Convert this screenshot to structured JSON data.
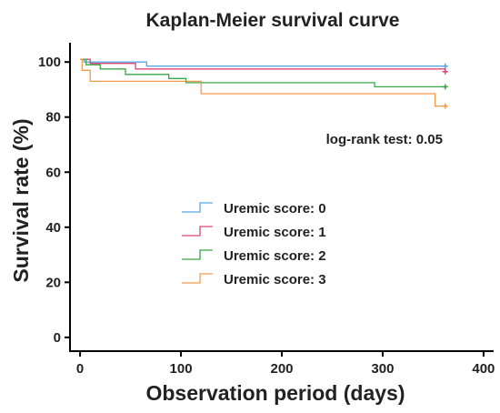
{
  "chart_data": {
    "type": "line",
    "title": "Kaplan-Meier survival curve",
    "xlabel": "Observation period (days)",
    "ylabel": "Survival rate (%)",
    "xlim": [
      -10,
      410
    ],
    "ylim": [
      -5,
      107
    ],
    "x_ticks": [
      0,
      100,
      200,
      300,
      400
    ],
    "y_ticks": [
      0,
      20,
      40,
      60,
      80,
      100
    ],
    "grid": false,
    "legend_position": "center-left",
    "annotation": "log-rank test: 0.05",
    "series": [
      {
        "name": "Uremic score: 0",
        "color": "#5aa7e0",
        "steps": [
          [
            0,
            101
          ],
          [
            4,
            101
          ],
          [
            4,
            100
          ],
          [
            66,
            100
          ],
          [
            66,
            98.5
          ],
          [
            362,
            98.5
          ]
        ],
        "censor": [
          [
            362,
            98.5
          ]
        ]
      },
      {
        "name": "Uremic score: 1",
        "color": "#e0457b",
        "steps": [
          [
            0,
            101
          ],
          [
            10,
            101
          ],
          [
            10,
            99.5
          ],
          [
            55,
            99.5
          ],
          [
            55,
            97.5
          ],
          [
            362,
            97.5
          ],
          [
            362,
            96.5
          ]
        ],
        "censor": [
          [
            362,
            96.5
          ]
        ]
      },
      {
        "name": "Uremic score: 2",
        "color": "#3aa64a",
        "steps": [
          [
            0,
            101
          ],
          [
            6,
            101
          ],
          [
            6,
            99
          ],
          [
            20,
            99
          ],
          [
            20,
            97.5
          ],
          [
            45,
            97.5
          ],
          [
            45,
            95.5
          ],
          [
            88,
            95.5
          ],
          [
            88,
            94
          ],
          [
            105,
            94
          ],
          [
            105,
            92.5
          ],
          [
            292,
            92.5
          ],
          [
            292,
            91
          ],
          [
            362,
            91
          ]
        ],
        "censor": [
          [
            362,
            91
          ]
        ]
      },
      {
        "name": "Uremic score: 3",
        "color": "#f29a4a",
        "steps": [
          [
            0,
            101
          ],
          [
            2,
            101
          ],
          [
            2,
            97
          ],
          [
            10,
            97
          ],
          [
            10,
            93
          ],
          [
            120,
            93
          ],
          [
            120,
            88.5
          ],
          [
            352,
            88.5
          ],
          [
            352,
            84
          ],
          [
            362,
            84
          ]
        ],
        "censor": [
          [
            362,
            84
          ]
        ]
      }
    ]
  }
}
